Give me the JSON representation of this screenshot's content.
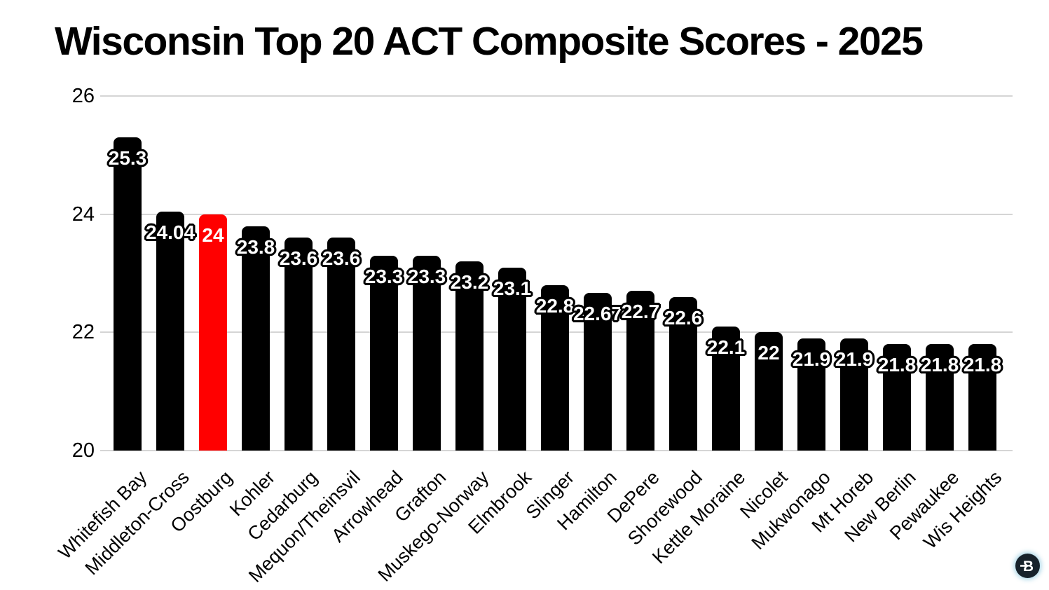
{
  "page": {
    "background": "#ffffff"
  },
  "chart_data": {
    "type": "bar",
    "title": "Wisconsin Top 20 ACT Composite Scores - 2025",
    "categories": [
      "Whitefish Bay",
      "Middleton-Cross",
      "Oostburg",
      "Kohler",
      "Cedarburg",
      "Mequon/Theinsvil",
      "Arrowhead",
      "Grafton",
      "Muskego-Norway",
      "Elmbrook",
      "Slinger",
      "Hamilton",
      "DePere",
      "Shorewood",
      "Kettle Moraine",
      "Nicolet",
      "Mukwonago",
      "Mt Horeb",
      "New Berlin",
      "Pewaukee",
      "Wis Heights"
    ],
    "values": [
      25.3,
      24.04,
      24,
      23.8,
      23.6,
      23.6,
      23.3,
      23.3,
      23.2,
      23.1,
      22.8,
      22.67,
      22.7,
      22.6,
      22.1,
      22,
      21.9,
      21.9,
      21.8,
      21.8,
      21.8
    ],
    "value_labels": [
      "25.3",
      "24.04",
      "24",
      "23.8",
      "23.6",
      "23.6",
      "23.3",
      "23.3",
      "23.2",
      "23.1",
      "22.8",
      "22.67",
      "22.7",
      "22.6",
      "22.1",
      "22",
      "21.9",
      "21.9",
      "21.8",
      "21.8",
      "21.8"
    ],
    "highlight_index": 2,
    "highlight_category": "Oostburg",
    "xlabel": "",
    "ylabel": "",
    "ylim": [
      20,
      26
    ],
    "yticks": [
      20,
      22,
      24,
      26
    ],
    "grid": true,
    "legend_position": "none",
    "colors": {
      "bar": "#000000",
      "highlight_bar": "#ff0000",
      "value_label_text": "#ffffff",
      "gridline": "#d5d5d5",
      "axis_text": "#000000",
      "title_text": "#000000"
    }
  },
  "icons": {
    "corner_badge": "embed-share-arrow-icon"
  }
}
